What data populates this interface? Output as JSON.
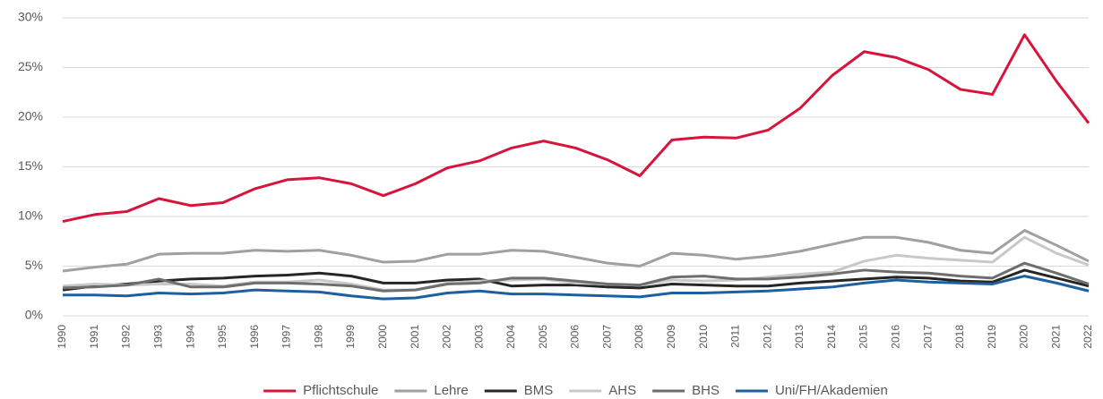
{
  "chart_data": {
    "type": "line",
    "categories": [
      "1990",
      "1991",
      "1992",
      "1993",
      "1994",
      "1995",
      "1996",
      "1997",
      "1998",
      "1999",
      "2000",
      "2001",
      "2002",
      "2003",
      "2004",
      "2005",
      "2006",
      "2007",
      "2008",
      "2009",
      "2010",
      "2011",
      "2012",
      "2013",
      "2014",
      "2015",
      "2016",
      "2017",
      "2018",
      "2019",
      "2020",
      "2021",
      "2022"
    ],
    "series": [
      {
        "name": "Pflichtschule",
        "color": "#d7143c",
        "values": [
          9.5,
          10.2,
          10.5,
          11.8,
          11.1,
          11.4,
          12.8,
          13.7,
          13.9,
          13.3,
          12.1,
          13.3,
          14.9,
          15.6,
          16.9,
          17.6,
          16.9,
          15.7,
          14.1,
          17.7,
          18.0,
          17.9,
          18.7,
          20.9,
          24.2,
          26.6,
          26.0,
          24.8,
          22.8,
          22.3,
          28.3,
          23.6,
          19.4
        ]
      },
      {
        "name": "Lehre",
        "color": "#a0a0a0",
        "values": [
          4.5,
          4.9,
          5.2,
          6.2,
          6.3,
          6.3,
          6.6,
          6.5,
          6.6,
          6.1,
          5.4,
          5.5,
          6.2,
          6.2,
          6.6,
          6.5,
          5.9,
          5.3,
          5.0,
          6.3,
          6.1,
          5.7,
          6.0,
          6.5,
          7.2,
          7.9,
          7.9,
          7.4,
          6.6,
          6.3,
          8.6,
          7.1,
          5.5
        ]
      },
      {
        "name": "BMS",
        "color": "#262626",
        "values": [
          2.6,
          3.0,
          3.2,
          3.5,
          3.7,
          3.8,
          4.0,
          4.1,
          4.3,
          4.0,
          3.3,
          3.3,
          3.6,
          3.7,
          3.0,
          3.1,
          3.1,
          2.9,
          2.8,
          3.2,
          3.1,
          3.0,
          3.0,
          3.3,
          3.5,
          3.7,
          3.9,
          3.8,
          3.5,
          3.4,
          4.6,
          3.8,
          3.0
        ]
      },
      {
        "name": "AHS",
        "color": "#c8c8c8",
        "values": [
          3.0,
          3.2,
          3.1,
          3.2,
          3.2,
          3.0,
          3.4,
          3.4,
          3.6,
          3.2,
          2.6,
          2.6,
          3.3,
          3.5,
          3.6,
          3.7,
          3.3,
          3.2,
          3.1,
          3.6,
          3.5,
          3.6,
          3.9,
          4.2,
          4.4,
          5.5,
          6.1,
          5.8,
          5.6,
          5.4,
          7.9,
          6.3,
          5.1
        ]
      },
      {
        "name": "BHS",
        "color": "#6e6e6e",
        "values": [
          2.8,
          2.9,
          3.1,
          3.7,
          2.9,
          2.9,
          3.3,
          3.3,
          3.2,
          3.0,
          2.5,
          2.6,
          3.2,
          3.3,
          3.8,
          3.8,
          3.5,
          3.2,
          3.1,
          3.9,
          4.0,
          3.7,
          3.7,
          3.9,
          4.2,
          4.6,
          4.4,
          4.3,
          4.0,
          3.8,
          5.3,
          4.3,
          3.2
        ]
      },
      {
        "name": "Uni/FH/Akademien",
        "color": "#1f5fa0",
        "values": [
          2.1,
          2.1,
          2.0,
          2.3,
          2.2,
          2.3,
          2.6,
          2.5,
          2.4,
          2.0,
          1.7,
          1.8,
          2.3,
          2.5,
          2.2,
          2.2,
          2.1,
          2.0,
          1.9,
          2.3,
          2.3,
          2.4,
          2.5,
          2.7,
          2.9,
          3.3,
          3.6,
          3.4,
          3.3,
          3.2,
          4.0,
          3.3,
          2.5
        ]
      }
    ],
    "ylim": [
      0,
      30
    ],
    "yticks": [
      {
        "value": 0,
        "label": "0%"
      },
      {
        "value": 5,
        "label": "5%"
      },
      {
        "value": 10,
        "label": "10%"
      },
      {
        "value": 15,
        "label": "15%"
      },
      {
        "value": 20,
        "label": "20%"
      },
      {
        "value": 25,
        "label": "25%"
      },
      {
        "value": 30,
        "label": "30%"
      }
    ],
    "grid": true,
    "legend": "bottom"
  }
}
